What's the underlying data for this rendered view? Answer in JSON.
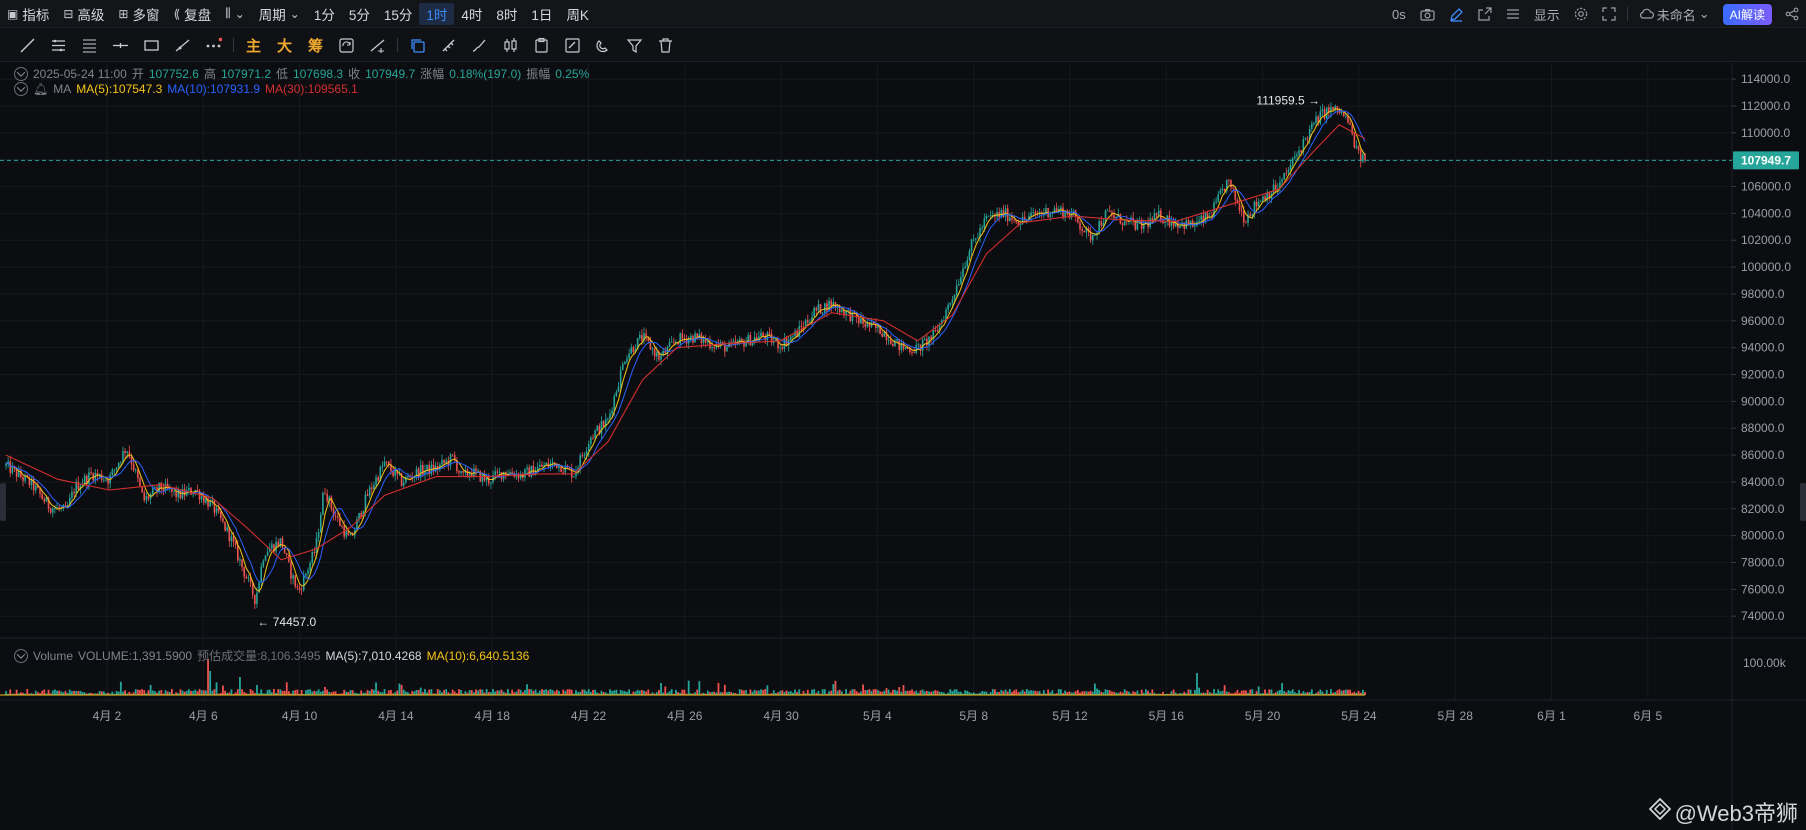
{
  "toolbar": {
    "items": [
      {
        "label": "指标",
        "icon": "indicator-icon"
      },
      {
        "label": "高级",
        "icon": "advanced-chart-icon"
      },
      {
        "label": "多窗",
        "icon": "multi-window-icon"
      },
      {
        "label": "复盘",
        "icon": "replay-icon"
      },
      {
        "label": "",
        "icon": "candle-type-icon"
      },
      {
        "label": "周期",
        "icon": "chevron-down-icon"
      }
    ],
    "intervals": [
      "1分",
      "5分",
      "15分",
      "1时",
      "4时",
      "8时",
      "1日",
      "周K"
    ],
    "active_interval": "1时",
    "right": {
      "countdown": "0s",
      "display_label": "显示",
      "layout_name": "未命名",
      "ai_label": "AI解读"
    }
  },
  "drawing_tools": {
    "text_tools": [
      "主",
      "大",
      "筹"
    ]
  },
  "legend": {
    "date": "2025-05-24 11:00",
    "open_label": "开",
    "open": "107752.6",
    "high_label": "高",
    "high": "107971.2",
    "low_label": "低",
    "low": "107698.3",
    "close_label": "收",
    "close": "107949.7",
    "change_label": "涨幅",
    "change": "0.18%(197.0)",
    "amp_label": "振幅",
    "amp": "0.25%",
    "ma_name": "MA",
    "ma5": "MA(5):107547.3",
    "ma10": "MA(10):107931.9",
    "ma30": "MA(30):109565.1"
  },
  "volume_legend": {
    "name": "Volume",
    "volume": "VOLUME:1,391.5900",
    "est_label": "预估成交量:8,106.3495",
    "ma5": "MA(5):7,010.4268",
    "ma10": "MA(10):6,640.5136"
  },
  "colors": {
    "up": "#26a69a",
    "down": "#ef5350",
    "ma5": "#f5c518",
    "ma10": "#2962ff",
    "ma30": "#d32f2f",
    "price_tag": "#26a69a",
    "background": "#0c0d10"
  },
  "chart_data": {
    "type": "candlestick",
    "y_axis_ticks": [
      "114000.0",
      "112000.0",
      "110000.0",
      "108000.0",
      "106000.0",
      "104000.0",
      "102000.0",
      "100000.0",
      "98000.0",
      "96000.0",
      "94000.0",
      "92000.0",
      "90000.0",
      "88000.0",
      "86000.0",
      "84000.0",
      "82000.0",
      "80000.0",
      "78000.0",
      "76000.0",
      "74000.0"
    ],
    "ylim": [
      72600,
      115200
    ],
    "x_axis_ticks": [
      "4月 2",
      "4月 6",
      "4月 10",
      "4月 14",
      "4月 18",
      "4月 22",
      "4月 26",
      "4月 30",
      "5月 4",
      "5月 8",
      "5月 12",
      "5月 16",
      "5月 20",
      "5月 24",
      "5月 28",
      "6月 1",
      "6月 5"
    ],
    "current_price": "107949.7",
    "current_price_value": 107949.7,
    "max_label": "111959.5",
    "max_value": 111959.5,
    "min_label": "74457.0",
    "min_value": 74457.0,
    "volume_axis_label": "100.00k",
    "price_path": [
      [
        0,
        85200
      ],
      [
        1.5,
        83800
      ],
      [
        2.5,
        82200
      ],
      [
        3.5,
        81800
      ],
      [
        4,
        83600
      ],
      [
        5,
        84600
      ],
      [
        6,
        84200
      ],
      [
        7,
        86600
      ],
      [
        7.5,
        84800
      ],
      [
        8,
        82600
      ],
      [
        9,
        83600
      ],
      [
        10,
        83000
      ],
      [
        11,
        83400
      ],
      [
        12,
        82200
      ],
      [
        13,
        80000
      ],
      [
        14,
        76800
      ],
      [
        14.5,
        75200
      ],
      [
        15,
        78800
      ],
      [
        16,
        79600
      ],
      [
        16.5,
        77400
      ],
      [
        17,
        75800
      ],
      [
        18,
        79000
      ],
      [
        18.5,
        83600
      ],
      [
        19,
        81800
      ],
      [
        20,
        79600
      ],
      [
        21,
        83000
      ],
      [
        22,
        85400
      ],
      [
        23,
        84000
      ],
      [
        24,
        84800
      ],
      [
        25,
        85000
      ],
      [
        26,
        85800
      ],
      [
        26.5,
        84300
      ],
      [
        27,
        84800
      ],
      [
        28,
        84100
      ],
      [
        29,
        84800
      ],
      [
        30,
        84500
      ],
      [
        31,
        85100
      ],
      [
        32,
        85400
      ],
      [
        33,
        84600
      ],
      [
        34,
        87400
      ],
      [
        35,
        88600
      ],
      [
        36,
        93400
      ],
      [
        37,
        94800
      ],
      [
        38,
        93200
      ],
      [
        39,
        94600
      ],
      [
        40,
        94800
      ],
      [
        41,
        94300
      ],
      [
        42,
        94000
      ],
      [
        43,
        94500
      ],
      [
        44,
        94900
      ],
      [
        45,
        94200
      ],
      [
        46,
        95100
      ],
      [
        47,
        96700
      ],
      [
        48,
        97300
      ],
      [
        49,
        96500
      ],
      [
        50,
        95700
      ],
      [
        51,
        95200
      ],
      [
        52,
        94000
      ],
      [
        53,
        93900
      ],
      [
        54,
        95000
      ],
      [
        55,
        97700
      ],
      [
        56,
        101300
      ],
      [
        57,
        103600
      ],
      [
        58,
        104000
      ],
      [
        59,
        103400
      ],
      [
        60,
        104000
      ],
      [
        61,
        104300
      ],
      [
        62,
        103900
      ],
      [
        63,
        102200
      ],
      [
        64,
        104000
      ],
      [
        65,
        103400
      ],
      [
        66,
        103000
      ],
      [
        67,
        103800
      ],
      [
        68,
        103300
      ],
      [
        69,
        103100
      ],
      [
        70,
        103800
      ],
      [
        71,
        106400
      ],
      [
        72,
        103600
      ],
      [
        73,
        105200
      ],
      [
        74,
        106000
      ],
      [
        75,
        108300
      ],
      [
        76,
        110600
      ],
      [
        76.5,
        111400
      ],
      [
        77,
        111700
      ],
      [
        77.5,
        111600
      ],
      [
        78,
        110900
      ],
      [
        78.6,
        108300
      ],
      [
        79,
        107949.7
      ]
    ],
    "ma30_path": [
      [
        0,
        86000
      ],
      [
        3,
        84200
      ],
      [
        6,
        83400
      ],
      [
        9,
        83800
      ],
      [
        12,
        82800
      ],
      [
        14,
        80600
      ],
      [
        16,
        78200
      ],
      [
        18,
        79000
      ],
      [
        20,
        80600
      ],
      [
        22,
        83000
      ],
      [
        25,
        84400
      ],
      [
        28,
        84400
      ],
      [
        31,
        84600
      ],
      [
        33,
        84600
      ],
      [
        35,
        87000
      ],
      [
        37,
        91600
      ],
      [
        39,
        94000
      ],
      [
        42,
        94300
      ],
      [
        45,
        94500
      ],
      [
        48,
        96600
      ],
      [
        51,
        96000
      ],
      [
        53,
        94500
      ],
      [
        55,
        96400
      ],
      [
        57,
        101000
      ],
      [
        59,
        103300
      ],
      [
        62,
        103800
      ],
      [
        65,
        103500
      ],
      [
        68,
        103400
      ],
      [
        71,
        104600
      ],
      [
        74,
        105800
      ],
      [
        76,
        108600
      ],
      [
        77.5,
        110600
      ],
      [
        79,
        109565
      ]
    ]
  }
}
